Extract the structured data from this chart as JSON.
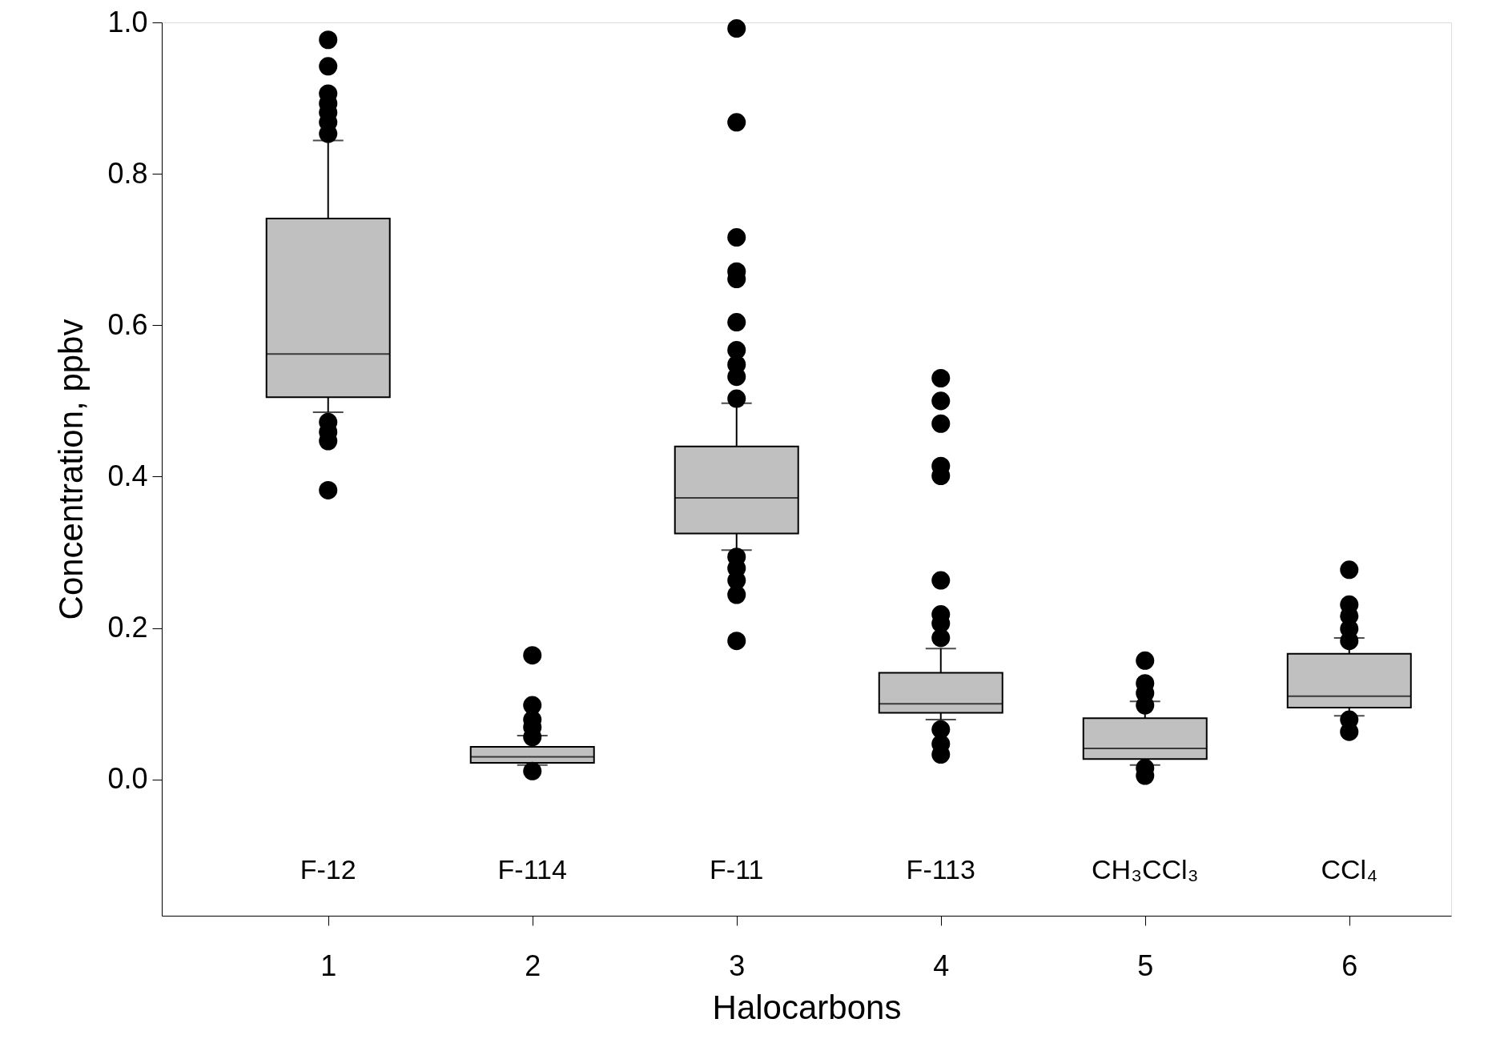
{
  "chart_data": {
    "type": "box",
    "xlabel": "Halocarbons",
    "ylabel": "Concentration, ppbv",
    "categories": [
      "1",
      "2",
      "3",
      "4",
      "5",
      "6"
    ],
    "color": "#c0c0c0",
    "boxes": [
      {
        "low": 0.485,
        "q1": 0.505,
        "median": 0.562,
        "q3": 0.741,
        "high": 0.844,
        "outliers": [
          0.977,
          0.942,
          0.906,
          0.893,
          0.881,
          0.868,
          0.853,
          0.472,
          0.459,
          0.447,
          0.382
        ]
      },
      {
        "low": 0.019,
        "q1": 0.022,
        "median": 0.03,
        "q3": 0.043,
        "high": 0.058,
        "outliers": [
          0.164,
          0.098,
          0.079,
          0.069,
          0.056,
          0.011
        ]
      },
      {
        "low": 0.303,
        "q1": 0.325,
        "median": 0.372,
        "q3": 0.44,
        "high": 0.497,
        "outliers": [
          0.992,
          0.868,
          0.716,
          0.671,
          0.661,
          0.604,
          0.567,
          0.548,
          0.532,
          0.503,
          0.294,
          0.279,
          0.263,
          0.244,
          0.183
        ]
      },
      {
        "low": 0.079,
        "q1": 0.088,
        "median": 0.1,
        "q3": 0.141,
        "high": 0.173,
        "outliers": [
          0.53,
          0.5,
          0.47,
          0.414,
          0.401,
          0.263,
          0.218,
          0.206,
          0.187,
          0.066,
          0.047,
          0.033
        ]
      },
      {
        "low": 0.019,
        "q1": 0.027,
        "median": 0.041,
        "q3": 0.081,
        "high": 0.103,
        "outliers": [
          0.157,
          0.127,
          0.114,
          0.098,
          0.015,
          0.005
        ]
      },
      {
        "low": 0.084,
        "q1": 0.095,
        "median": 0.11,
        "q3": 0.166,
        "high": 0.187,
        "outliers": [
          0.277,
          0.231,
          0.216,
          0.199,
          0.183,
          0.079,
          0.063
        ]
      }
    ],
    "ylim": [
      -0.18,
      1.0
    ],
    "yticks": [
      {
        "value": 0,
        "label": "0.0"
      },
      0.2,
      0.4,
      0.6,
      0.8,
      {
        "value": 1.0,
        "label": "1.0"
      }
    ],
    "grid": false,
    "annotations": [
      "F-12",
      "F-114",
      "F-11",
      "F-113",
      "CH₃CCl₃",
      "CCl₄"
    ]
  }
}
